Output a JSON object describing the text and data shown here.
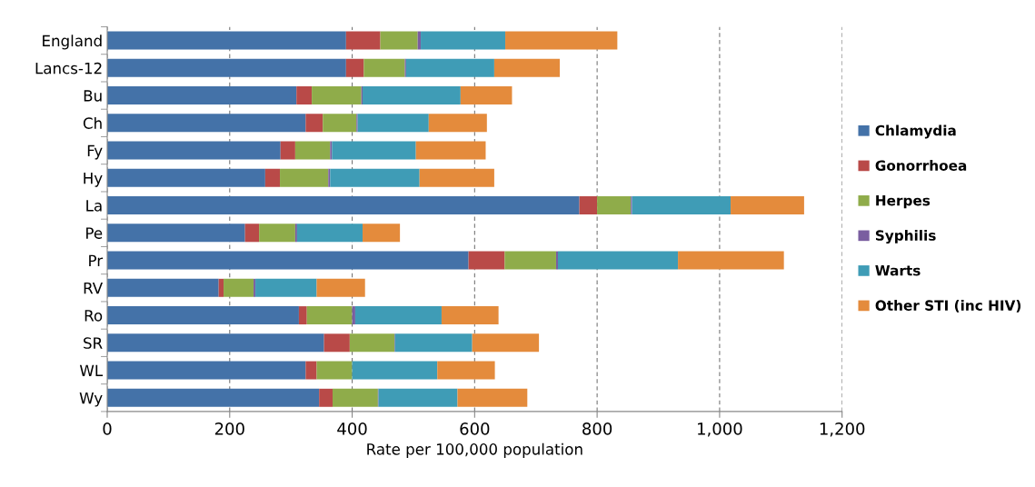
{
  "chart_data": {
    "type": "bar",
    "orientation": "horizontal",
    "stacked": true,
    "categories": [
      "England",
      "Lancs-12",
      "Bu",
      "Ch",
      "Fy",
      "Hy",
      "La",
      "Pe",
      "Pr",
      "RV",
      "Ro",
      "SR",
      "WL",
      "Wy"
    ],
    "series": [
      {
        "name": "Chlamydia",
        "color": "#4472a8",
        "values": [
          390,
          390,
          309,
          324,
          283,
          258,
          771,
          225,
          590,
          182,
          313,
          354,
          324,
          346
        ]
      },
      {
        "name": "Gonorrhoea",
        "color": "#b94a48",
        "values": [
          56,
          29,
          25,
          28,
          24,
          24,
          29,
          23,
          59,
          8,
          13,
          42,
          18,
          22
        ]
      },
      {
        "name": "Herpes",
        "color": "#8fac4a",
        "values": [
          61,
          67,
          81,
          55,
          57,
          79,
          55,
          59,
          84,
          49,
          74,
          73,
          58,
          74
        ]
      },
      {
        "name": "Syphilis",
        "color": "#7a5ea0",
        "values": [
          5,
          2,
          2,
          2,
          3,
          3,
          2,
          3,
          3,
          3,
          5,
          1,
          null,
          1
        ]
      },
      {
        "name": "Warts",
        "color": "#3f9cb6",
        "values": [
          138,
          144,
          160,
          116,
          137,
          146,
          161,
          107,
          196,
          100,
          141,
          126,
          139,
          129
        ]
      },
      {
        "name": "Other STI (inc HIV)",
        "color": "#e48b3c",
        "values": [
          183,
          107,
          84,
          95,
          114,
          122,
          120,
          61,
          173,
          79,
          93,
          109,
          94,
          114
        ]
      }
    ],
    "xlim": [
      0,
      1200
    ],
    "xticks": [
      0,
      200,
      400,
      600,
      800,
      {
        "value": 1000,
        "label": "1,000"
      },
      {
        "value": 1200,
        "label": "1,200"
      }
    ],
    "xlabel": "Rate per 100,000 population",
    "grid": "x",
    "legend": "right"
  }
}
